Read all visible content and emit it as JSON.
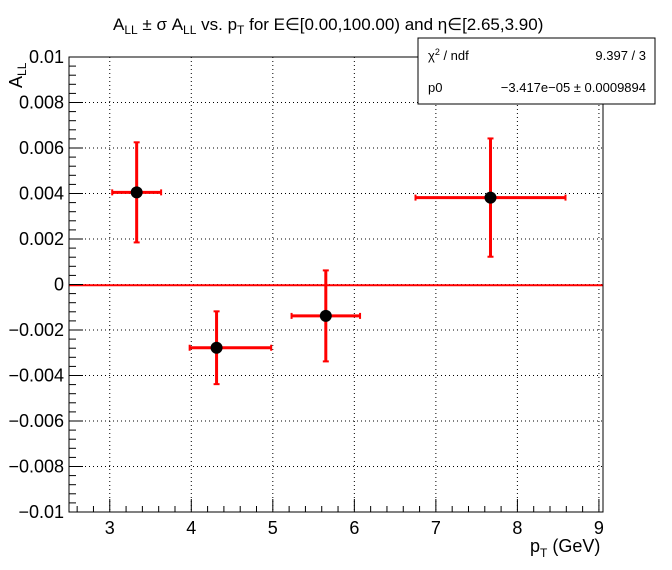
{
  "chart_data": {
    "type": "scatter",
    "title_parts": {
      "a": "A",
      "sub_ll": "LL",
      "pm_sigma": " ± σ A",
      "vs_p": " vs. p",
      "sub_t": "T",
      "rest": " for E∈[0.00,100.00) and η∈[2.65,3.90)"
    },
    "xlabel_main": "p",
    "xlabel_sub": "T",
    "xlabel_unit": " (GeV)",
    "ylabel_main": "A",
    "ylabel_sub": "LL",
    "xlim": [
      2.5,
      9.05
    ],
    "ylim": [
      -0.01,
      0.01
    ],
    "xticks": [
      3,
      4,
      5,
      6,
      7,
      8,
      9
    ],
    "xtick_labels": [
      "3",
      "4",
      "5",
      "6",
      "7",
      "8",
      "9"
    ],
    "yticks": [
      -0.01,
      -0.008,
      -0.006,
      -0.004,
      -0.002,
      0,
      0.002,
      0.004,
      0.006,
      0.008,
      0.01
    ],
    "ytick_labels": [
      "−0.01",
      "−0.008",
      "−0.006",
      "−0.004",
      "−0.002",
      "0",
      "0.002",
      "0.004",
      "0.006",
      "0.008",
      "0.01"
    ],
    "grid": true,
    "points": [
      {
        "x": 3.33,
        "y": 0.00405,
        "xerr_low": 0.3,
        "xerr_high": 0.3,
        "yerr": 0.0022
      },
      {
        "x": 4.31,
        "y": -0.00278,
        "xerr_low": 0.33,
        "xerr_high": 0.67,
        "yerr": 0.0016
      },
      {
        "x": 5.65,
        "y": -0.00138,
        "xerr_low": 0.42,
        "xerr_high": 0.42,
        "yerr": 0.002
      },
      {
        "x": 7.67,
        "y": 0.00382,
        "xerr_low": 0.92,
        "xerr_high": 0.92,
        "yerr": 0.0026
      }
    ],
    "fit_line": {
      "y": -3.417e-05
    },
    "colors": {
      "error_bars": "#ff0000",
      "markers": "#000000",
      "fit": "#ff0000"
    },
    "stats": {
      "chi2_label_main": "χ",
      "chi2_label_sup": "2",
      "chi2_label_rest": " / ndf",
      "chi2_value": "9.397 / 3",
      "p0_label": "p0",
      "p0_value": "−3.417e−05 ± 0.0009894"
    }
  }
}
